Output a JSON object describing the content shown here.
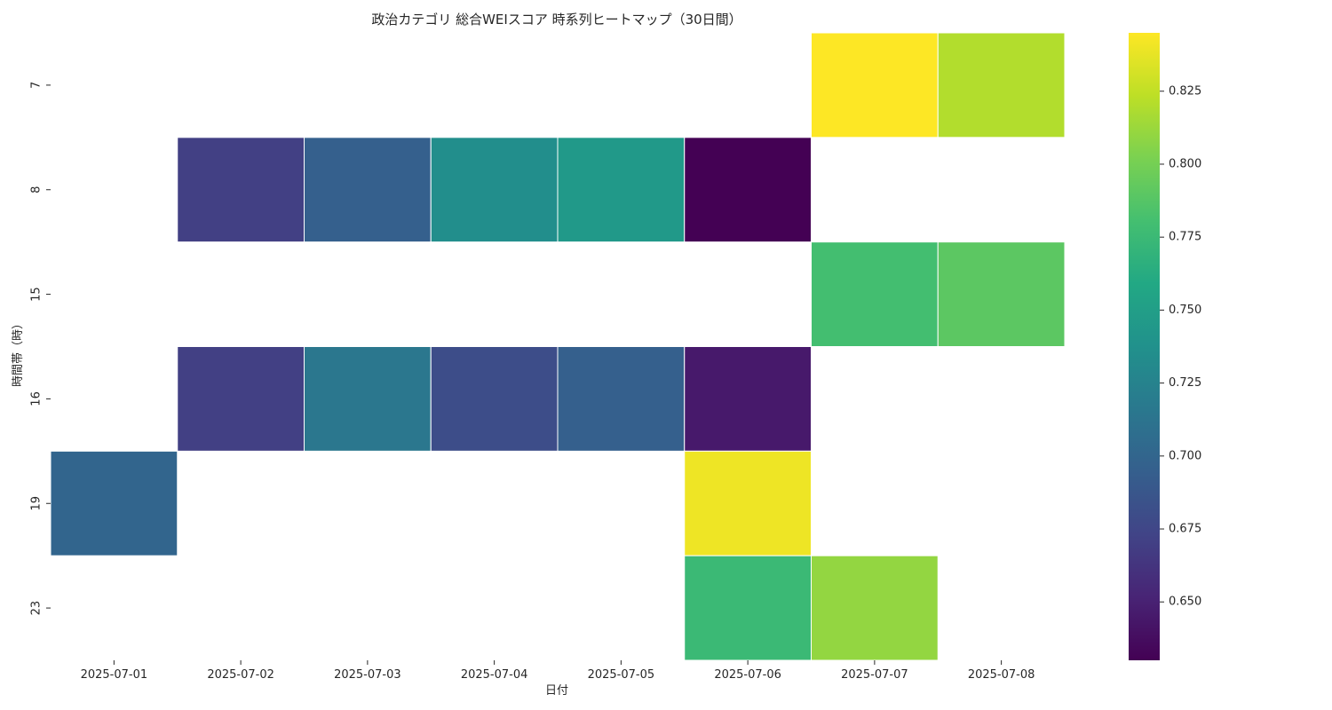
{
  "chart_data": {
    "type": "heatmap",
    "title": "政治カテゴリ 総合WEIスコア 時系列ヒートマップ（30日間）",
    "xlabel": "日付",
    "ylabel": "時間帯（時）",
    "x_categories": [
      "2025-07-01",
      "2025-07-02",
      "2025-07-03",
      "2025-07-04",
      "2025-07-05",
      "2025-07-06",
      "2025-07-07",
      "2025-07-08"
    ],
    "y_categories": [
      "7",
      "8",
      "15",
      "16",
      "19",
      "23"
    ],
    "values": [
      [
        null,
        null,
        null,
        null,
        null,
        null,
        0.845,
        0.82
      ],
      [
        null,
        0.67,
        0.695,
        0.735,
        0.745,
        0.63,
        null,
        null
      ],
      [
        null,
        null,
        null,
        null,
        null,
        null,
        0.78,
        0.79
      ],
      [
        null,
        0.67,
        0.715,
        0.68,
        0.695,
        0.645,
        null,
        null
      ],
      [
        0.7,
        null,
        null,
        null,
        null,
        0.84,
        null,
        null
      ],
      [
        null,
        null,
        null,
        null,
        null,
        0.775,
        0.81,
        null
      ]
    ],
    "colormap": "viridis",
    "colorbar": {
      "min": 0.63,
      "max": 0.845,
      "ticks": [
        0.65,
        0.675,
        0.7,
        0.725,
        0.75,
        0.775,
        0.8,
        0.825
      ],
      "tick_labels": [
        "0.650",
        "0.675",
        "0.700",
        "0.725",
        "0.750",
        "0.775",
        "0.800",
        "0.825"
      ]
    },
    "missing_color": "#ffffff",
    "grid": false
  }
}
